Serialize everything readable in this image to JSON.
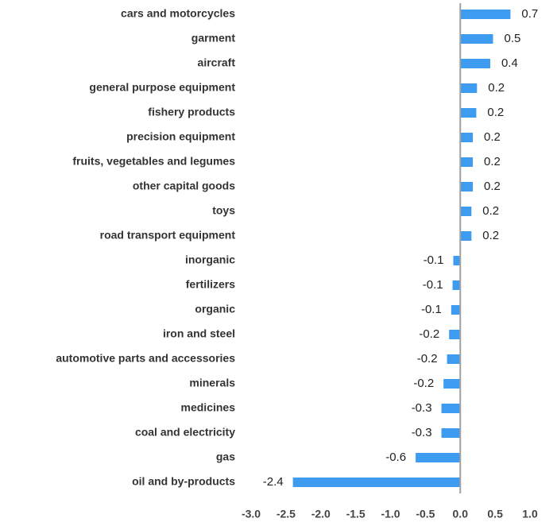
{
  "chart_data": {
    "type": "hbar",
    "categories": [
      "cars and motorcycles",
      "garment",
      "aircraft",
      "general purpose equipment",
      "fishery products",
      "precision equipment",
      "fruits, vegetables and legumes",
      "other capital goods",
      "toys",
      "road transport equipment",
      "inorganic",
      "fertilizers",
      "organic",
      "iron and steel",
      "automotive parts and accessories",
      "minerals",
      "medicines",
      "coal and electricity",
      "gas",
      "oil and by-products"
    ],
    "values": [
      0.72,
      0.47,
      0.43,
      0.24,
      0.23,
      0.18,
      0.18,
      0.18,
      0.16,
      0.16,
      -0.1,
      -0.11,
      -0.13,
      -0.16,
      -0.19,
      -0.24,
      -0.27,
      -0.27,
      -0.64,
      -2.4
    ],
    "value_labels": [
      "0.7",
      "0.5",
      "0.4",
      "0.2",
      "0.2",
      "0.2",
      "0.2",
      "0.2",
      "0.2",
      "0.2",
      "-0.1",
      "-0.1",
      "-0.1",
      "-0.2",
      "-0.2",
      "-0.2",
      "-0.3",
      "-0.3",
      "-0.6",
      "-2.4"
    ],
    "color": "#3d9bf0",
    "xlim": [
      -3.0,
      1.0
    ],
    "xticks": [
      {
        "value": -3,
        "label": "-3.0"
      },
      -2.5,
      {
        "value": -2,
        "label": "-2.0"
      },
      -1.5,
      {
        "value": -1,
        "label": "-1.0"
      },
      -0.5,
      {
        "value": 0,
        "label": "0.0"
      },
      0.5,
      {
        "value": 1,
        "label": "1.0"
      }
    ],
    "grid": false
  }
}
